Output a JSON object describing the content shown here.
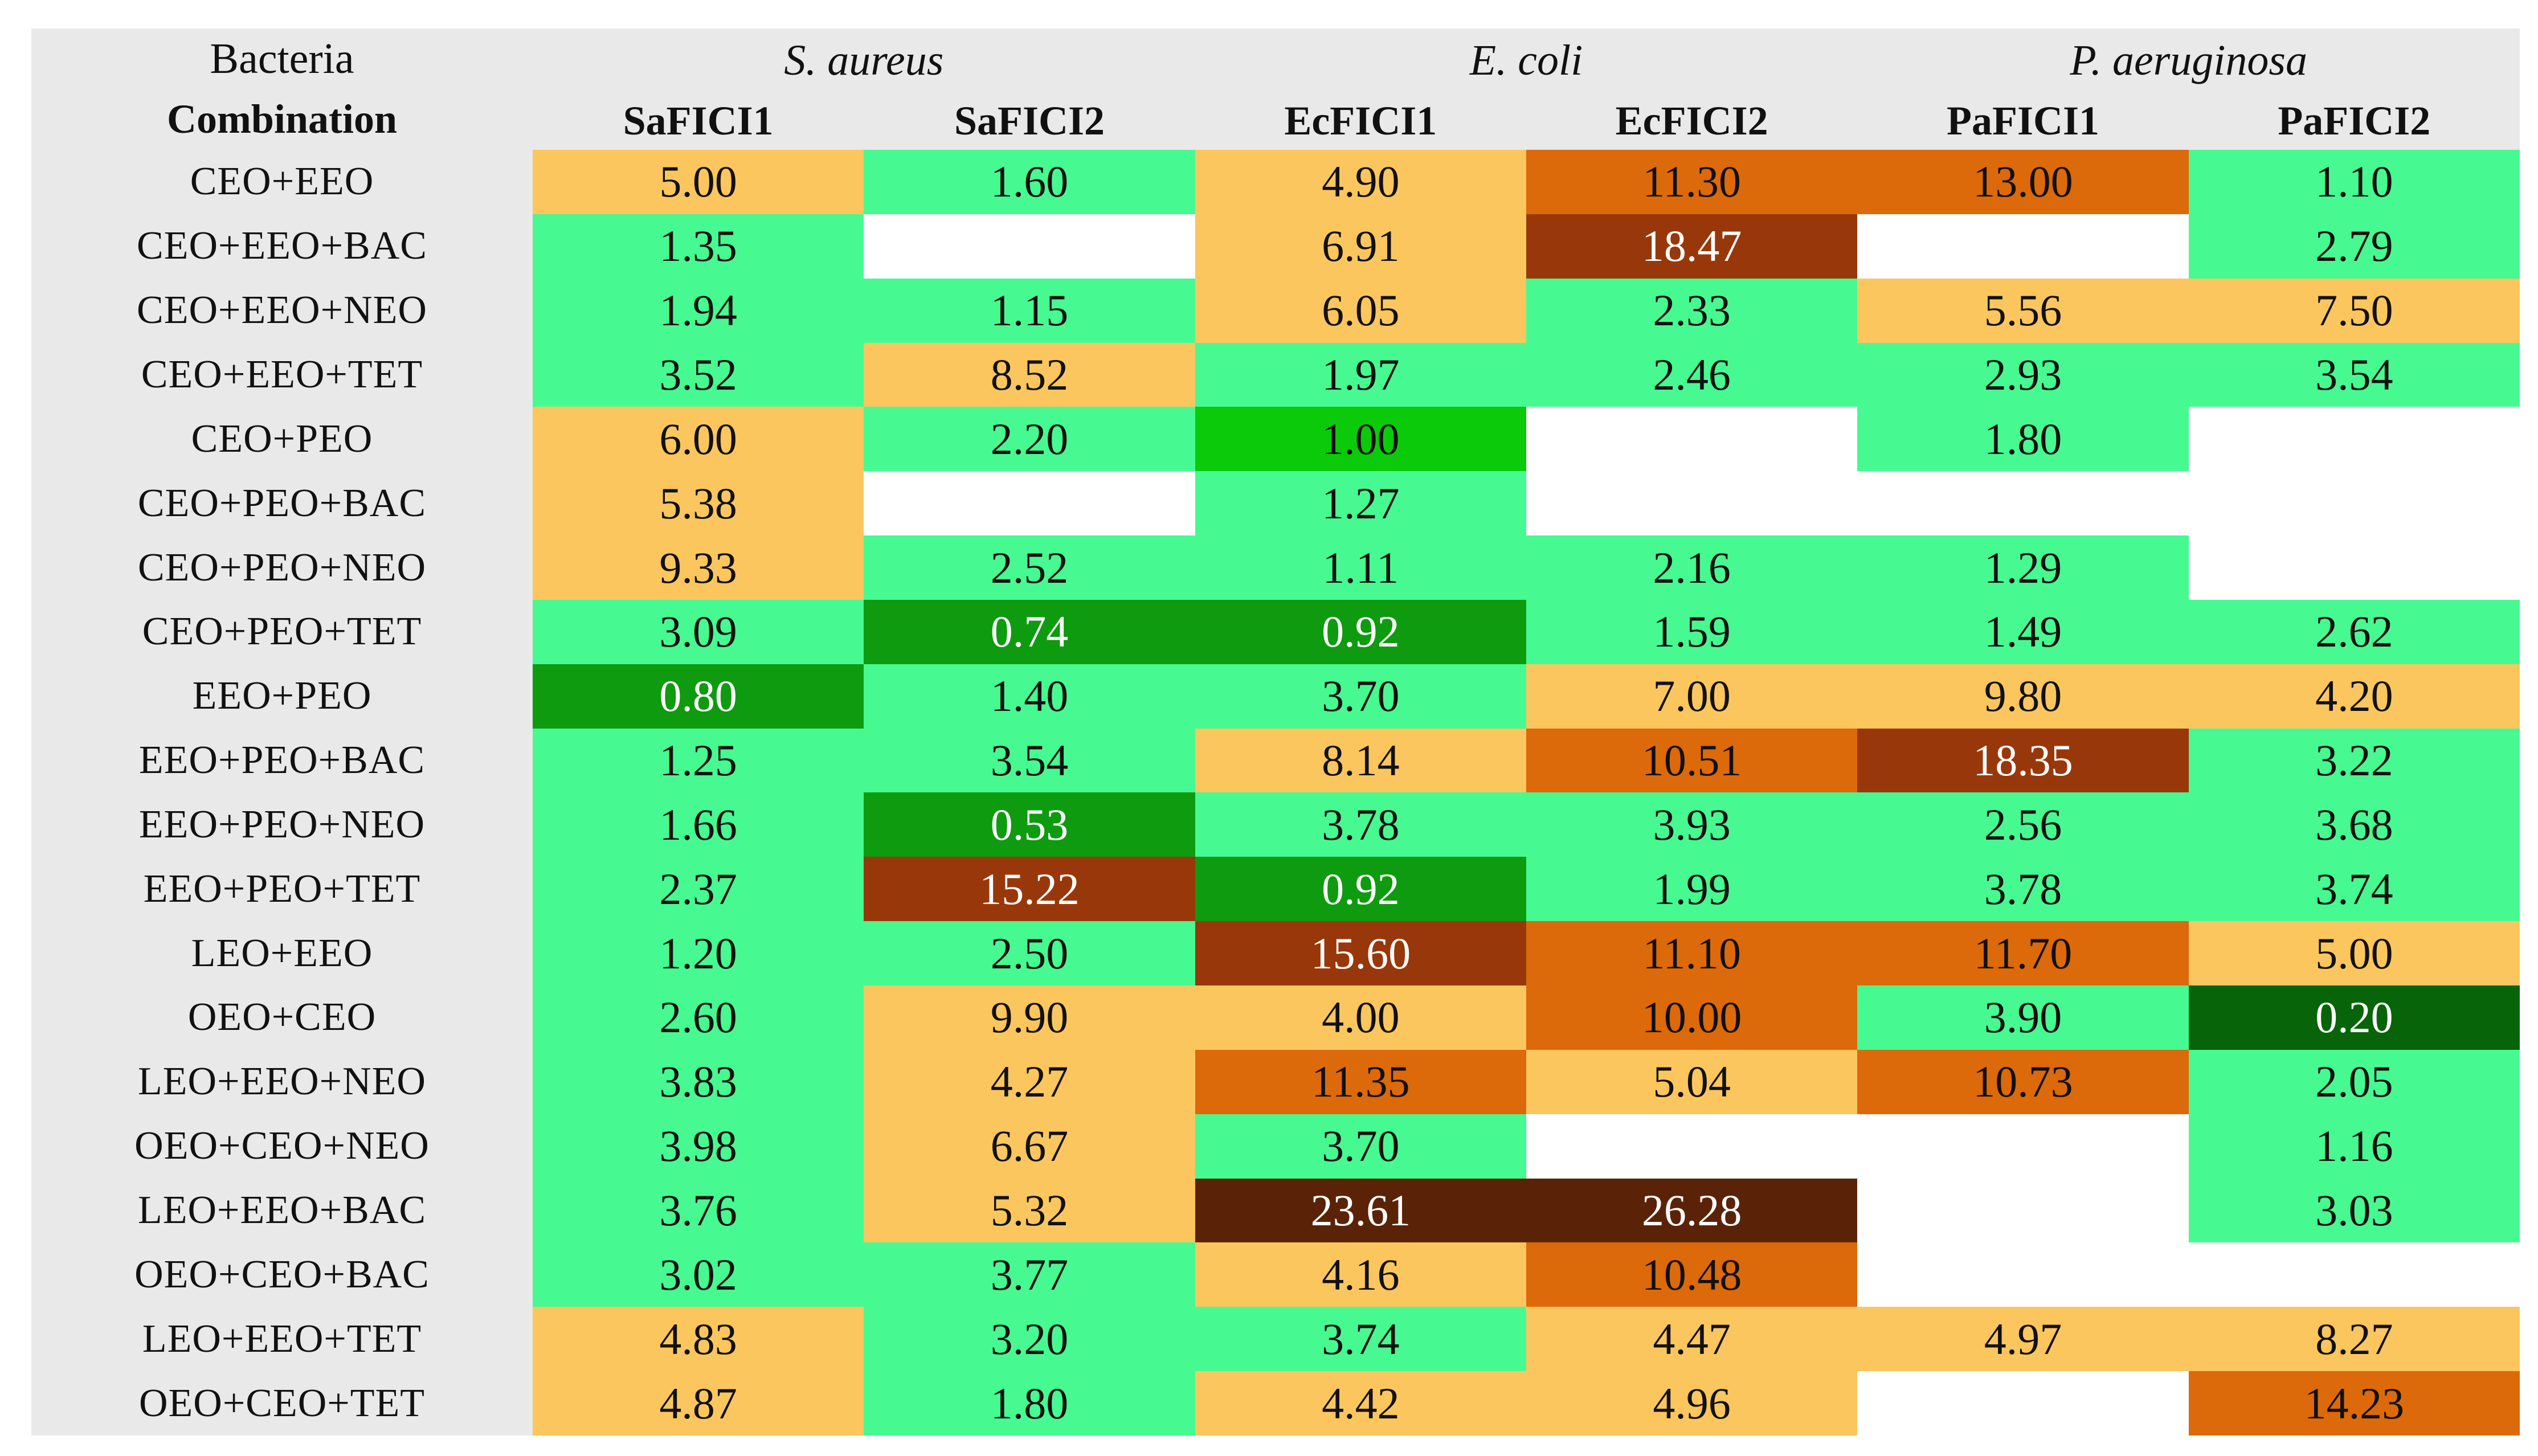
{
  "header": {
    "corner_line1": "Bacteria",
    "corner_line2": "Combination",
    "species_groups": [
      "S. aureus",
      "E. coli",
      "P. aeruginosa"
    ],
    "columns": [
      "SaFICI1",
      "SaFICI2",
      "EcFICI1",
      "EcFICI2",
      "PaFICI1",
      "PaFICI2"
    ]
  },
  "palette": {
    "darkest_green": "#086408",
    "mid_green": "#0F9B0F",
    "bright_green": "#0ACA0A",
    "green": "#46FA91",
    "light_orange": "#FCC65F",
    "dark_orange": "#DC690A",
    "brown": "#98380A",
    "dark_brown": "#5A2308",
    "empty": "#FFFFFF",
    "panel_gray": "#E9E9E9",
    "text_dark": "#111111",
    "text_light": "#FFFFFF"
  },
  "chart_data": {
    "type": "heatmap",
    "row_label_header": [
      "Bacteria",
      "Combination"
    ],
    "column_groups": [
      {
        "species": "S. aureus",
        "columns": [
          "SaFICI1",
          "SaFICI2"
        ]
      },
      {
        "species": "E. coli",
        "columns": [
          "EcFICI1",
          "EcFICI2"
        ]
      },
      {
        "species": "P. aeruginosa",
        "columns": [
          "PaFICI1",
          "PaFICI2"
        ]
      }
    ],
    "columns": [
      "SaFICI1",
      "SaFICI2",
      "EcFICI1",
      "EcFICI2",
      "PaFICI1",
      "PaFICI2"
    ],
    "rows": [
      "CEO+EEO",
      "CEO+EEO+BAC",
      "CEO+EEO+NEO",
      "CEO+EEO+TET",
      "CEO+PEO",
      "CEO+PEO+BAC",
      "CEO+PEO+NEO",
      "CEO+PEO+TET",
      "EEO+PEO",
      "EEO+PEO+BAC",
      "EEO+PEO+NEO",
      "EEO+PEO+TET",
      "LEO+EEO",
      "OEO+CEO",
      "LEO+EEO+NEO",
      "OEO+CEO+NEO",
      "LEO+EEO+BAC",
      "OEO+CEO+BAC",
      "LEO+EEO+TET",
      "OEO+CEO+TET"
    ],
    "values": [
      [
        5.0,
        1.6,
        4.9,
        11.3,
        13.0,
        1.1
      ],
      [
        1.35,
        null,
        6.91,
        18.47,
        null,
        2.79
      ],
      [
        1.94,
        1.15,
        6.05,
        2.33,
        5.56,
        7.5
      ],
      [
        3.52,
        8.52,
        1.97,
        2.46,
        2.93,
        3.54
      ],
      [
        6.0,
        2.2,
        1.0,
        null,
        1.8,
        null
      ],
      [
        5.38,
        null,
        1.27,
        null,
        null,
        null
      ],
      [
        9.33,
        2.52,
        1.11,
        2.16,
        1.29,
        null
      ],
      [
        3.09,
        0.74,
        0.92,
        1.59,
        1.49,
        2.62
      ],
      [
        0.8,
        1.4,
        3.7,
        7.0,
        9.8,
        4.2
      ],
      [
        1.25,
        3.54,
        8.14,
        10.51,
        18.35,
        3.22
      ],
      [
        1.66,
        0.53,
        3.78,
        3.93,
        2.56,
        3.68
      ],
      [
        2.37,
        15.22,
        0.92,
        1.99,
        3.78,
        3.74
      ],
      [
        1.2,
        2.5,
        15.6,
        11.1,
        11.7,
        5.0
      ],
      [
        2.6,
        9.9,
        4.0,
        10.0,
        3.9,
        0.2
      ],
      [
        3.83,
        4.27,
        11.35,
        5.04,
        10.73,
        2.05
      ],
      [
        3.98,
        6.67,
        3.7,
        null,
        null,
        1.16
      ],
      [
        3.76,
        5.32,
        23.61,
        26.28,
        null,
        3.03
      ],
      [
        3.02,
        3.77,
        4.16,
        10.48,
        null,
        null
      ],
      [
        4.83,
        3.2,
        3.74,
        4.47,
        4.97,
        8.27
      ],
      [
        4.87,
        1.8,
        4.42,
        4.96,
        null,
        14.23
      ]
    ],
    "color_scale": [
      {
        "max": 0.49,
        "key": "darkest_green",
        "fg": "light"
      },
      {
        "max": 0.99,
        "key": "mid_green",
        "fg": "light"
      },
      {
        "max": 1.004,
        "key": "bright_green",
        "fg": "dark"
      },
      {
        "max": 3.99,
        "key": "green",
        "fg": "dark"
      },
      {
        "max": 9.99,
        "key": "light_orange",
        "fg": "dark"
      },
      {
        "max": 14.99,
        "key": "dark_orange",
        "fg": "dark"
      },
      {
        "max": 19.99,
        "key": "brown",
        "fg": "light"
      },
      {
        "max": 1000,
        "key": "dark_brown",
        "fg": "light"
      }
    ]
  }
}
